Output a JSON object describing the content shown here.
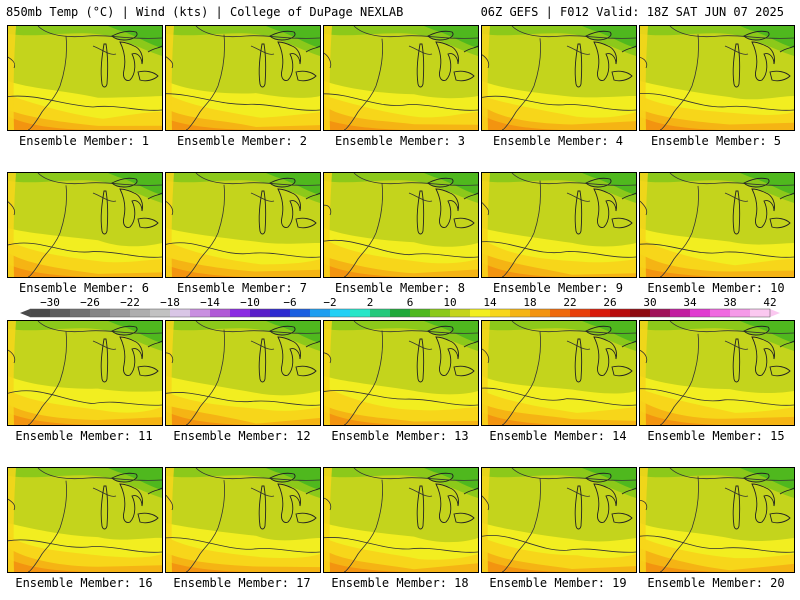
{
  "header": {
    "left": "850mb Temp (°C) | Wind (kts) | College of DuPage NEXLAB",
    "right": "06Z GEFS | F012 Valid: 18Z SAT JUN 07 2025"
  },
  "panels": [
    {
      "label": "Ensemble Member: 1"
    },
    {
      "label": "Ensemble Member: 2"
    },
    {
      "label": "Ensemble Member: 3"
    },
    {
      "label": "Ensemble Member: 4"
    },
    {
      "label": "Ensemble Member: 5"
    },
    {
      "label": "Ensemble Member: 6"
    },
    {
      "label": "Ensemble Member: 7"
    },
    {
      "label": "Ensemble Member: 8"
    },
    {
      "label": "Ensemble Member: 9"
    },
    {
      "label": "Ensemble Member: 10"
    },
    {
      "label": "Ensemble Member: 11"
    },
    {
      "label": "Ensemble Member: 12"
    },
    {
      "label": "Ensemble Member: 13"
    },
    {
      "label": "Ensemble Member: 14"
    },
    {
      "label": "Ensemble Member: 15"
    },
    {
      "label": "Ensemble Member: 16"
    },
    {
      "label": "Ensemble Member: 17"
    },
    {
      "label": "Ensemble Member: 18"
    },
    {
      "label": "Ensemble Member: 19"
    },
    {
      "label": "Ensemble Member: 20"
    }
  ],
  "colorbar": {
    "unit_values": [
      -32,
      -30,
      -28,
      -26,
      -24,
      -22,
      -20,
      -18,
      -16,
      -14,
      -12,
      -10,
      -8,
      -6,
      -4,
      -2,
      0,
      2,
      4,
      6,
      8,
      10,
      12,
      14,
      16,
      18,
      20,
      22,
      24,
      26,
      28,
      30,
      32,
      34,
      36,
      38,
      40,
      42
    ],
    "tick_labels": [
      "−30",
      "−26",
      "−22",
      "−18",
      "−14",
      "−10",
      "−6",
      "−2",
      "2",
      "6",
      "10",
      "14",
      "18",
      "22",
      "26",
      "30",
      "34",
      "38",
      "42"
    ],
    "colors": [
      "#4a4a4a",
      "#5e5e5e",
      "#727272",
      "#868686",
      "#9a9a9a",
      "#aeaeae",
      "#c2c2c2",
      "#d9c6e6",
      "#c98fe0",
      "#b05ad6",
      "#8a2be2",
      "#5a1fc9",
      "#2d2ad0",
      "#1b5fe0",
      "#1f9ef0",
      "#23d0f5",
      "#27e6c8",
      "#24c97c",
      "#1ea83a",
      "#4fb81e",
      "#8cc91a",
      "#c4d41c",
      "#f2ee20",
      "#f7d61a",
      "#f5b414",
      "#f39410",
      "#ef6a0c",
      "#e8400a",
      "#d81b0a",
      "#b80c0c",
      "#8e0a10",
      "#a0125a",
      "#c21fa0",
      "#e03cd0",
      "#f06ae0",
      "#f59ae8",
      "#fbc8f0"
    ]
  }
}
